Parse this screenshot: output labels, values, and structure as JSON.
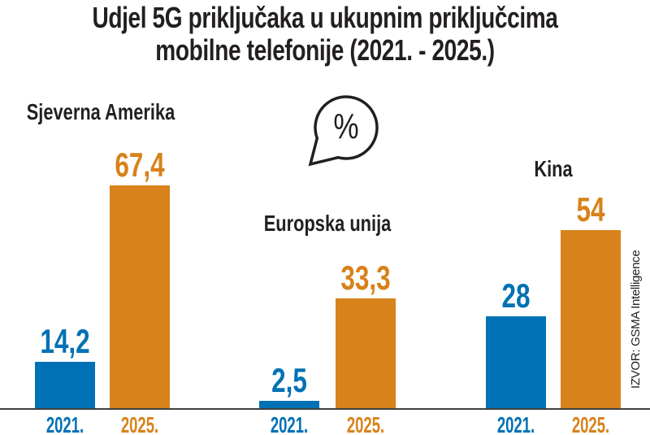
{
  "ui": {
    "title_line1": "Udjel 5G priključaka u ukupnim priključcima",
    "title_line2": "mobilne telefonije (2021. - 2025.)",
    "unit_bubble": "%",
    "source": "IZVOR: GSMA Intelligence"
  },
  "colors": {
    "blue_2021": "#0071b4",
    "orange_2025": "#d8821b",
    "ink": "#231f20",
    "baseline": "#404040"
  },
  "chart_data": {
    "type": "bar",
    "title": "Udjel 5G priključaka u ukupnim priključcima mobilne telefonije (2021. - 2025.)",
    "unit": "%",
    "categories": [
      "2021.",
      "2025."
    ],
    "groups": [
      {
        "name": "Sjeverna Amerika",
        "values": [
          14.2,
          67.4
        ],
        "labels": [
          "14,2",
          "67,4"
        ]
      },
      {
        "name": "Europska unija",
        "values": [
          2.5,
          33.3
        ],
        "labels": [
          "2,5",
          "33,3"
        ]
      },
      {
        "name": "Kina",
        "values": [
          28,
          54
        ],
        "labels": [
          "28",
          "54"
        ]
      }
    ],
    "series_colors": [
      "#0071b4",
      "#d8821b"
    ],
    "ylim": [
      0,
      70
    ],
    "grid": false,
    "legend": "none",
    "source": "IZVOR: GSMA Intelligence"
  }
}
